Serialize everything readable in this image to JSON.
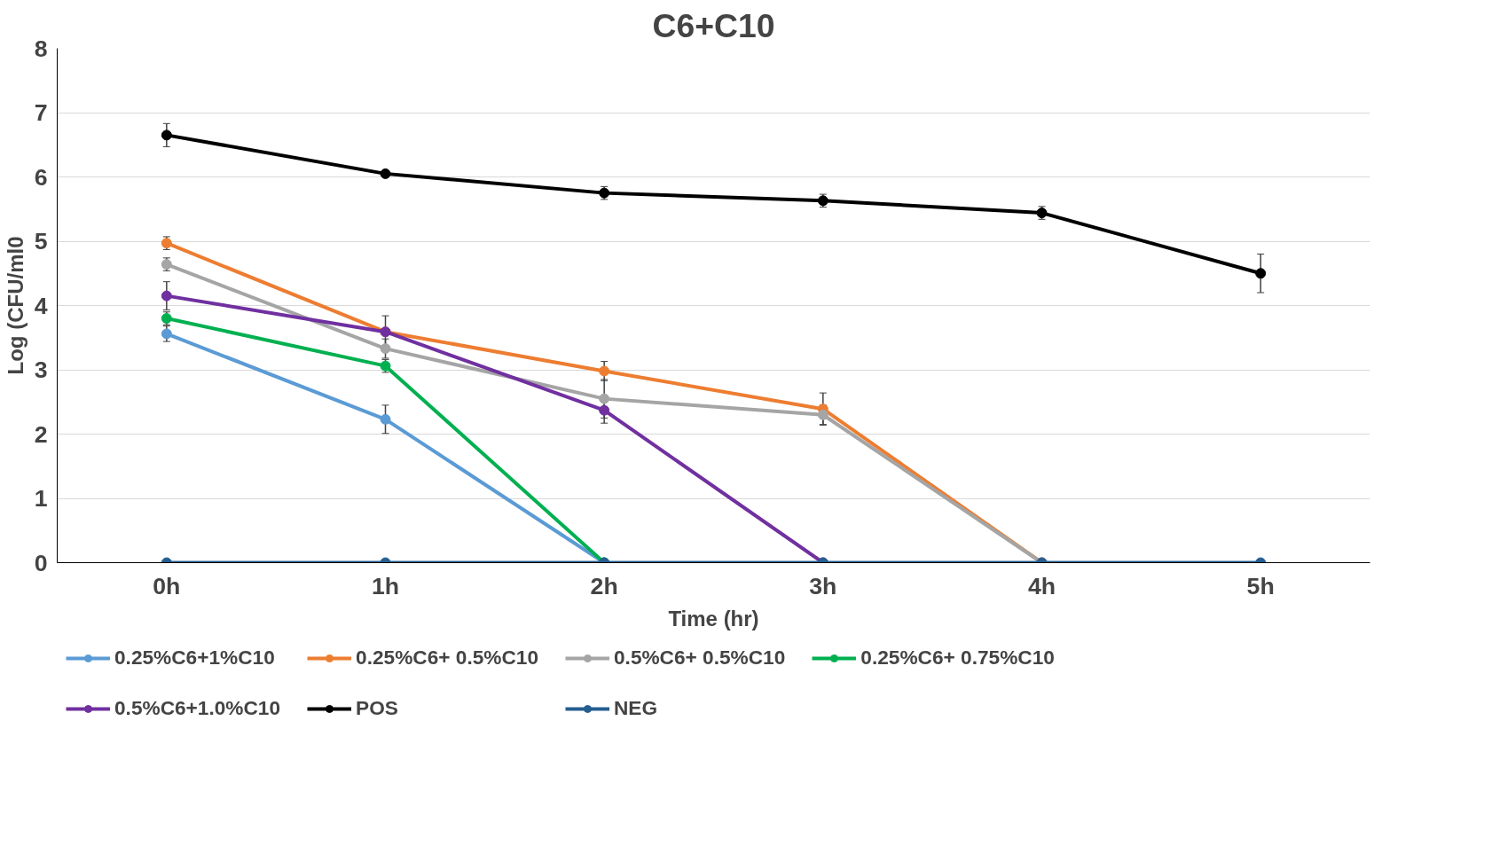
{
  "chart_data": {
    "type": "line",
    "title": "C6+C10",
    "xlabel": "Time (hr)",
    "ylabel": "Log (CFU/ml0",
    "categories": [
      "0h",
      "1h",
      "2h",
      "3h",
      "4h",
      "5h"
    ],
    "ylim": [
      0,
      8
    ],
    "yticks": [
      0,
      1,
      2,
      3,
      4,
      5,
      6,
      7,
      8
    ],
    "grid": "y",
    "legend": "bottom",
    "marker": "circle",
    "line_style": "solid",
    "series": [
      {
        "name": "0.25%C6+1%C10",
        "color": "#5b9bd5",
        "values": [
          3.56,
          2.23,
          0,
          null,
          null,
          null
        ],
        "errors": [
          0.12,
          0.22,
          null,
          null,
          null,
          null
        ]
      },
      {
        "name": "0.25%C6+ 0.5%C10",
        "color": "#ed7d31",
        "values": [
          4.97,
          3.59,
          2.98,
          2.39,
          0,
          null
        ],
        "errors": [
          0.1,
          null,
          0.15,
          0.25,
          null,
          null
        ]
      },
      {
        "name": "0.5%C6+ 0.5%C10",
        "color": "#a5a5a5",
        "values": [
          4.64,
          3.33,
          2.55,
          2.3,
          0,
          null
        ],
        "errors": [
          0.1,
          0.15,
          0.3,
          0.15,
          null,
          null
        ]
      },
      {
        "name": "0.25%C6+ 0.75%C10",
        "color": "#00b050",
        "values": [
          3.8,
          3.06,
          0,
          null,
          null,
          null
        ],
        "errors": [
          0.1,
          0.1,
          null,
          null,
          null,
          null
        ]
      },
      {
        "name": "0.5%C6+1.0%C10",
        "color": "#7030a0",
        "values": [
          4.15,
          3.59,
          2.37,
          0,
          null,
          null
        ],
        "errors": [
          0.22,
          0.25,
          0.2,
          null,
          null,
          null
        ]
      },
      {
        "name": "POS",
        "color": "#000000",
        "values": [
          6.65,
          6.05,
          5.75,
          5.63,
          5.44,
          4.5
        ],
        "errors": [
          0.18,
          null,
          0.1,
          0.1,
          0.1,
          0.3
        ]
      },
      {
        "name": "NEG",
        "color": "#255e91",
        "values": [
          0,
          0,
          0,
          0,
          0,
          0
        ]
      }
    ]
  }
}
